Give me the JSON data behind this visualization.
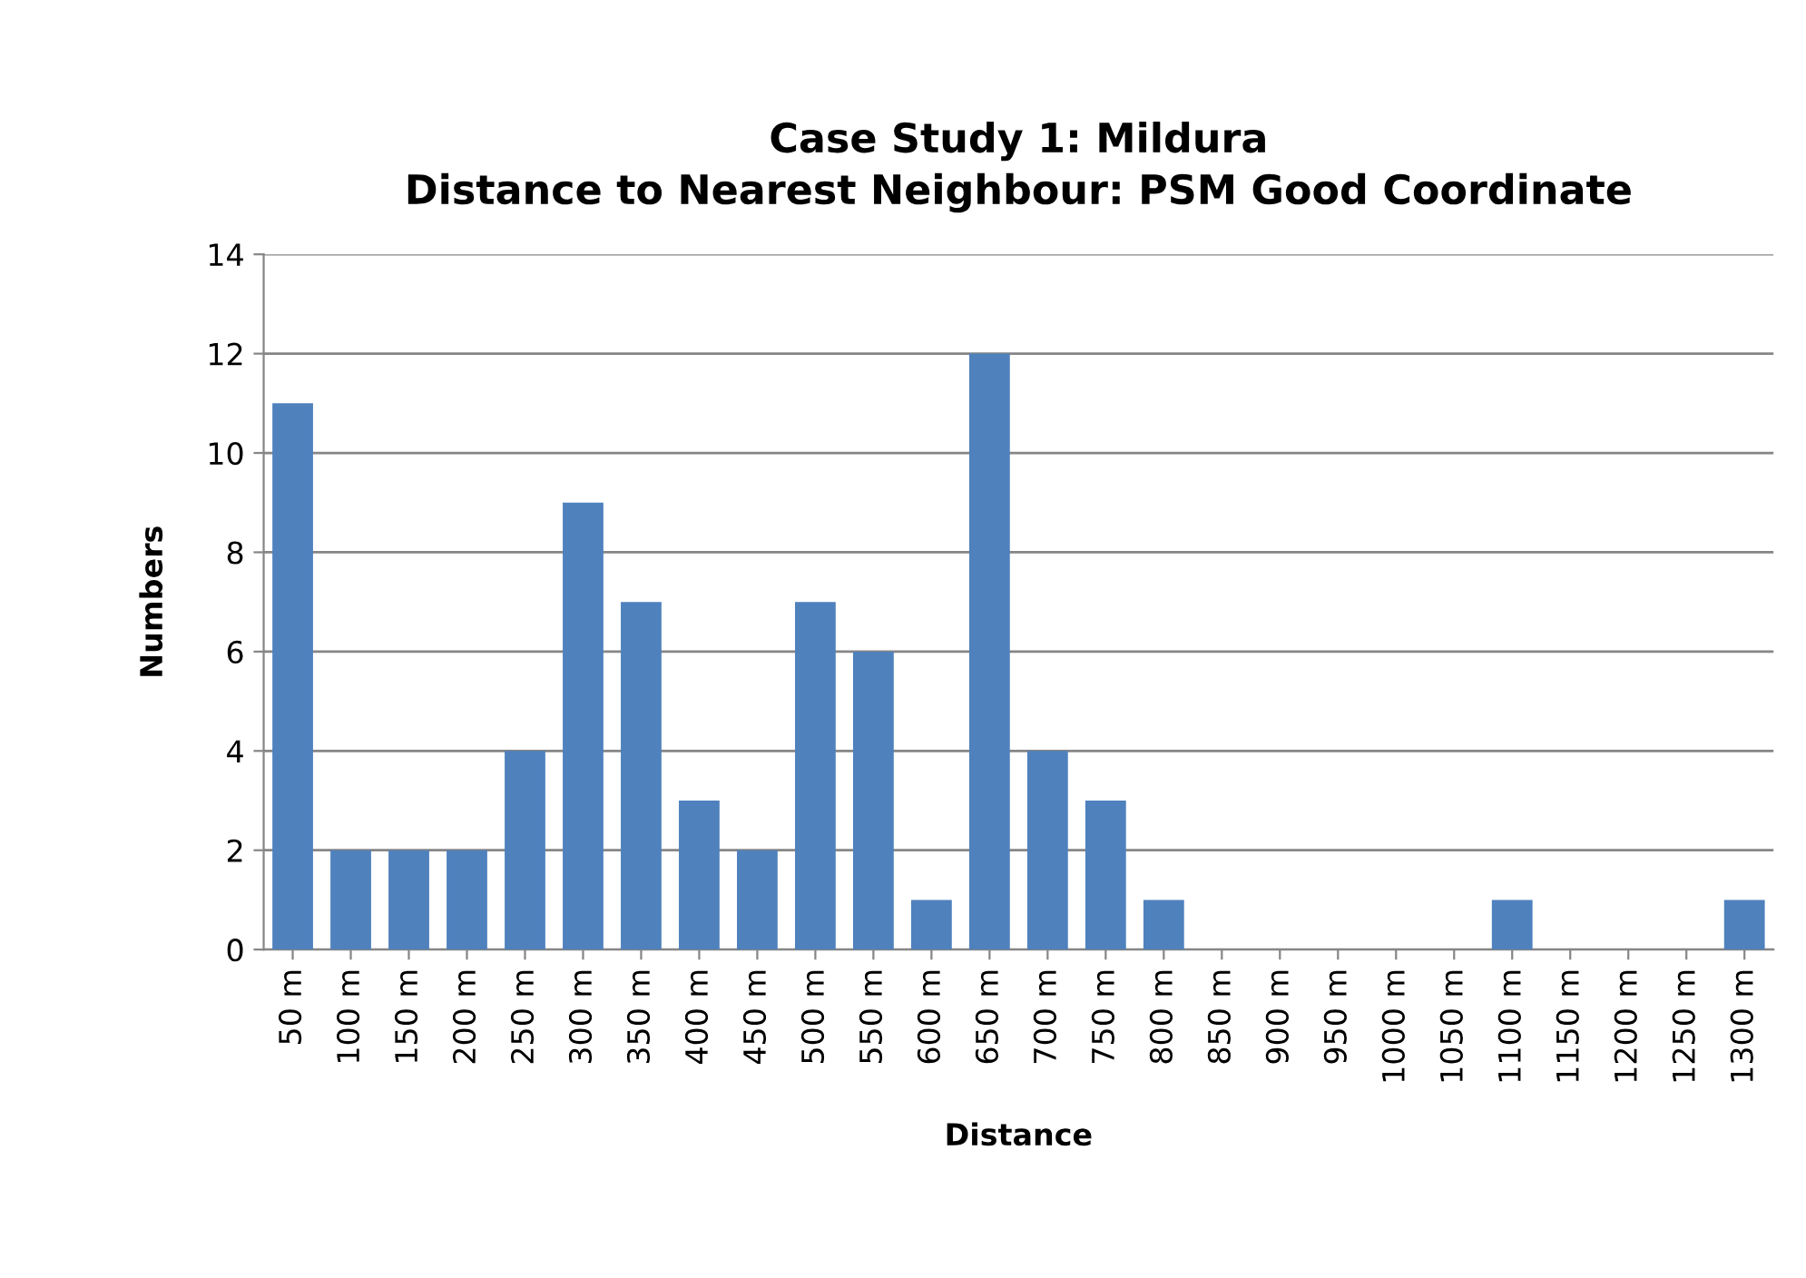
{
  "chart_data": {
    "type": "bar",
    "title": "Case Study 1: Mildura\nDistance to Nearest Neighbour: PSM Good Coordinate",
    "xlabel": "Distance",
    "ylabel": "Numbers",
    "categories": [
      "50 m",
      "100 m",
      "150 m",
      "200 m",
      "250 m",
      "300 m",
      "350 m",
      "400 m",
      "450 m",
      "500 m",
      "550 m",
      "600 m",
      "650 m",
      "700 m",
      "750 m",
      "800 m",
      "850 m",
      "900 m",
      "950 m",
      "1000 m",
      "1050 m",
      "1100 m",
      "1150 m",
      "1200 m",
      "1250 m",
      "1300 m"
    ],
    "values": [
      11,
      2,
      2,
      2,
      4,
      9,
      7,
      3,
      2,
      7,
      6,
      1,
      12,
      4,
      3,
      1,
      0,
      0,
      0,
      0,
      0,
      1,
      0,
      0,
      0,
      1
    ],
    "color": "#4f81bd",
    "ylim": [
      0,
      14
    ],
    "yticks": [
      0,
      2,
      4,
      6,
      8,
      10,
      12,
      14
    ],
    "grid": "y",
    "legend": false
  }
}
